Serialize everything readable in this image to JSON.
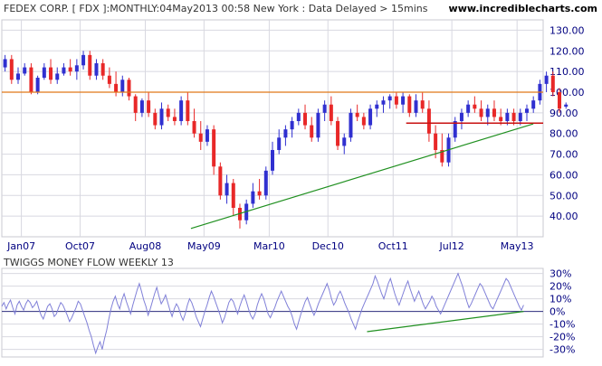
{
  "header": {
    "title": "FEDEX CORP. [ FDX ]:MONTHLY:04May2013 00:58 New York : Data Delayed > 15mins",
    "site": "www.incrediblecharts.com"
  },
  "colors": {
    "up_candle": "#3030d0",
    "down_candle": "#e82828",
    "resistance": "#e07818",
    "support_trend": "#209020",
    "support_line": "#c81010",
    "mf_line": "#8080d8",
    "zero_line": "#303080",
    "axis_text": "#000080",
    "grid": "#d8d8e0"
  },
  "chart_data": [
    {
      "type": "candlestick",
      "title": "FEDEX CORP. [ FDX ]:MONTHLY",
      "y_ticks": [
        "130.00",
        "120.00",
        "110.00",
        "100.00",
        "90.00",
        "80.00",
        "70.00",
        "60.00",
        "50.00",
        "40.00"
      ],
      "ylim": [
        30,
        135
      ],
      "x_ticks": [
        "Jan07",
        "Oct07",
        "Aug08",
        "May09",
        "Mar10",
        "Dec10",
        "Oct11",
        "Jul12",
        "May13"
      ],
      "x_range": [
        "2006-10",
        "2013-09"
      ],
      "resistance_level": 100,
      "support_level": 85,
      "trendline": [
        {
          "x": "2009-03",
          "y": 34
        },
        {
          "x": "2013-05",
          "y": 84
        }
      ],
      "candles_start": "2006-10",
      "candles": [
        [
          112,
          118,
          110,
          116
        ],
        [
          116,
          118,
          104,
          106
        ],
        [
          106,
          112,
          104,
          109
        ],
        [
          109,
          114,
          108,
          112
        ],
        [
          112,
          114,
          99,
          100
        ],
        [
          100,
          108,
          99,
          107
        ],
        [
          107,
          114,
          106,
          112
        ],
        [
          112,
          116,
          104,
          106
        ],
        [
          106,
          112,
          104,
          109
        ],
        [
          109,
          114,
          108,
          112
        ],
        [
          112,
          116,
          108,
          110
        ],
        [
          110,
          116,
          106,
          113
        ],
        [
          113,
          120,
          111,
          118
        ],
        [
          118,
          120,
          106,
          108
        ],
        [
          108,
          116,
          106,
          114
        ],
        [
          114,
          116,
          106,
          108
        ],
        [
          108,
          112,
          102,
          104
        ],
        [
          104,
          110,
          98,
          100
        ],
        [
          100,
          108,
          98,
          106
        ],
        [
          106,
          107,
          96,
          98
        ],
        [
          98,
          99,
          86,
          90
        ],
        [
          90,
          97,
          88,
          96
        ],
        [
          96,
          100,
          88,
          90
        ],
        [
          90,
          92,
          82,
          84
        ],
        [
          84,
          95,
          82,
          92
        ],
        [
          92,
          94,
          86,
          88
        ],
        [
          88,
          92,
          84,
          86
        ],
        [
          86,
          98,
          84,
          96
        ],
        [
          96,
          100,
          84,
          86
        ],
        [
          86,
          92,
          78,
          80
        ],
        [
          80,
          86,
          72,
          76
        ],
        [
          76,
          84,
          74,
          82
        ],
        [
          82,
          84,
          60,
          64
        ],
        [
          64,
          66,
          48,
          50
        ],
        [
          50,
          60,
          46,
          56
        ],
        [
          56,
          58,
          40,
          44
        ],
        [
          44,
          46,
          34,
          38
        ],
        [
          38,
          48,
          36,
          46
        ],
        [
          46,
          56,
          44,
          52
        ],
        [
          52,
          58,
          48,
          50
        ],
        [
          50,
          64,
          48,
          62
        ],
        [
          62,
          76,
          60,
          72
        ],
        [
          72,
          82,
          70,
          78
        ],
        [
          78,
          84,
          74,
          82
        ],
        [
          82,
          88,
          78,
          86
        ],
        [
          86,
          92,
          84,
          90
        ],
        [
          90,
          94,
          82,
          84
        ],
        [
          84,
          88,
          76,
          78
        ],
        [
          78,
          92,
          76,
          90
        ],
        [
          90,
          96,
          86,
          94
        ],
        [
          94,
          98,
          84,
          86
        ],
        [
          86,
          88,
          72,
          74
        ],
        [
          74,
          80,
          70,
          78
        ],
        [
          78,
          92,
          76,
          90
        ],
        [
          90,
          94,
          86,
          88
        ],
        [
          88,
          90,
          82,
          84
        ],
        [
          84,
          94,
          82,
          92
        ],
        [
          92,
          96,
          88,
          94
        ],
        [
          94,
          98,
          90,
          96
        ],
        [
          96,
          99,
          92,
          98
        ],
        [
          98,
          100,
          92,
          94
        ],
        [
          94,
          100,
          90,
          98
        ],
        [
          98,
          99,
          88,
          90
        ],
        [
          90,
          99,
          88,
          96
        ],
        [
          96,
          100,
          90,
          92
        ],
        [
          92,
          96,
          76,
          80
        ],
        [
          80,
          84,
          68,
          72
        ],
        [
          72,
          80,
          64,
          66
        ],
        [
          66,
          80,
          64,
          78
        ],
        [
          78,
          88,
          76,
          86
        ],
        [
          86,
          92,
          82,
          90
        ],
        [
          90,
          96,
          88,
          94
        ],
        [
          94,
          98,
          90,
          92
        ],
        [
          92,
          96,
          86,
          88
        ],
        [
          88,
          94,
          84,
          92
        ],
        [
          92,
          96,
          86,
          88
        ],
        [
          88,
          92,
          84,
          86
        ],
        [
          86,
          92,
          84,
          90
        ],
        [
          90,
          92,
          84,
          86
        ],
        [
          86,
          92,
          84,
          90
        ],
        [
          90,
          94,
          86,
          92
        ],
        [
          92,
          98,
          90,
          96
        ],
        [
          96,
          106,
          94,
          104
        ],
        [
          104,
          110,
          100,
          108
        ],
        [
          108,
          110,
          98,
          100
        ],
        [
          100,
          102,
          90,
          92
        ],
        [
          93,
          95,
          92,
          94
        ]
      ]
    },
    {
      "type": "line",
      "title": "TWIGGS MONEY FLOW WEEKLY 13",
      "y_ticks": [
        "30%",
        "20%",
        "10%",
        "0%",
        "-10%",
        "-20%",
        "-30%"
      ],
      "ylim": [
        -36,
        34
      ],
      "zero_level": 0,
      "trendline": [
        {
          "x": "2011-06",
          "y": -16
        },
        {
          "x": "2013-06",
          "y": 0
        }
      ],
      "start": "2006-10",
      "values": [
        4,
        7,
        2,
        6,
        9,
        3,
        -2,
        5,
        8,
        4,
        1,
        6,
        9,
        7,
        3,
        5,
        8,
        2,
        -3,
        -6,
        -1,
        4,
        6,
        2,
        -4,
        -2,
        3,
        7,
        5,
        1,
        -3,
        -8,
        -5,
        -1,
        3,
        8,
        6,
        1,
        -4,
        -9,
        -15,
        -20,
        -27,
        -33,
        -28,
        -24,
        -30,
        -22,
        -15,
        -6,
        2,
        8,
        12,
        6,
        2,
        9,
        14,
        8,
        3,
        -2,
        5,
        11,
        17,
        22,
        16,
        9,
        4,
        -3,
        2,
        8,
        14,
        19,
        12,
        6,
        9,
        13,
        7,
        1,
        -4,
        2,
        6,
        3,
        -3,
        -7,
        -2,
        5,
        10,
        7,
        2,
        -4,
        -8,
        -12,
        -6,
        0,
        5,
        11,
        16,
        12,
        7,
        2,
        -3,
        -9,
        -5,
        1,
        7,
        10,
        8,
        3,
        -2,
        4,
        9,
        13,
        8,
        2,
        -3,
        -6,
        -2,
        5,
        10,
        14,
        10,
        4,
        -2,
        -5,
        -1,
        3,
        8,
        12,
        16,
        12,
        8,
        4,
        1,
        -4,
        -10,
        -14,
        -8,
        -2,
        3,
        8,
        11,
        6,
        1,
        -3,
        1,
        6,
        10,
        14,
        18,
        22,
        17,
        10,
        5,
        8,
        13,
        16,
        12,
        7,
        3,
        -1,
        -6,
        -10,
        -14,
        -8,
        -3,
        2,
        6,
        10,
        14,
        18,
        22,
        28,
        24,
        19,
        14,
        10,
        16,
        22,
        26,
        20,
        14,
        9,
        5,
        10,
        15,
        20,
        24,
        18,
        13,
        8,
        12,
        16,
        11,
        6,
        2,
        5,
        8,
        12,
        9,
        4,
        1,
        -2,
        2,
        6,
        10,
        14,
        18,
        22,
        26,
        30,
        25,
        20,
        14,
        8,
        3,
        6,
        10,
        14,
        18,
        22,
        20,
        16,
        12,
        8,
        4,
        2,
        6,
        10,
        14,
        18,
        22,
        26,
        24,
        20,
        16,
        12,
        8,
        4,
        1,
        5
      ]
    }
  ]
}
